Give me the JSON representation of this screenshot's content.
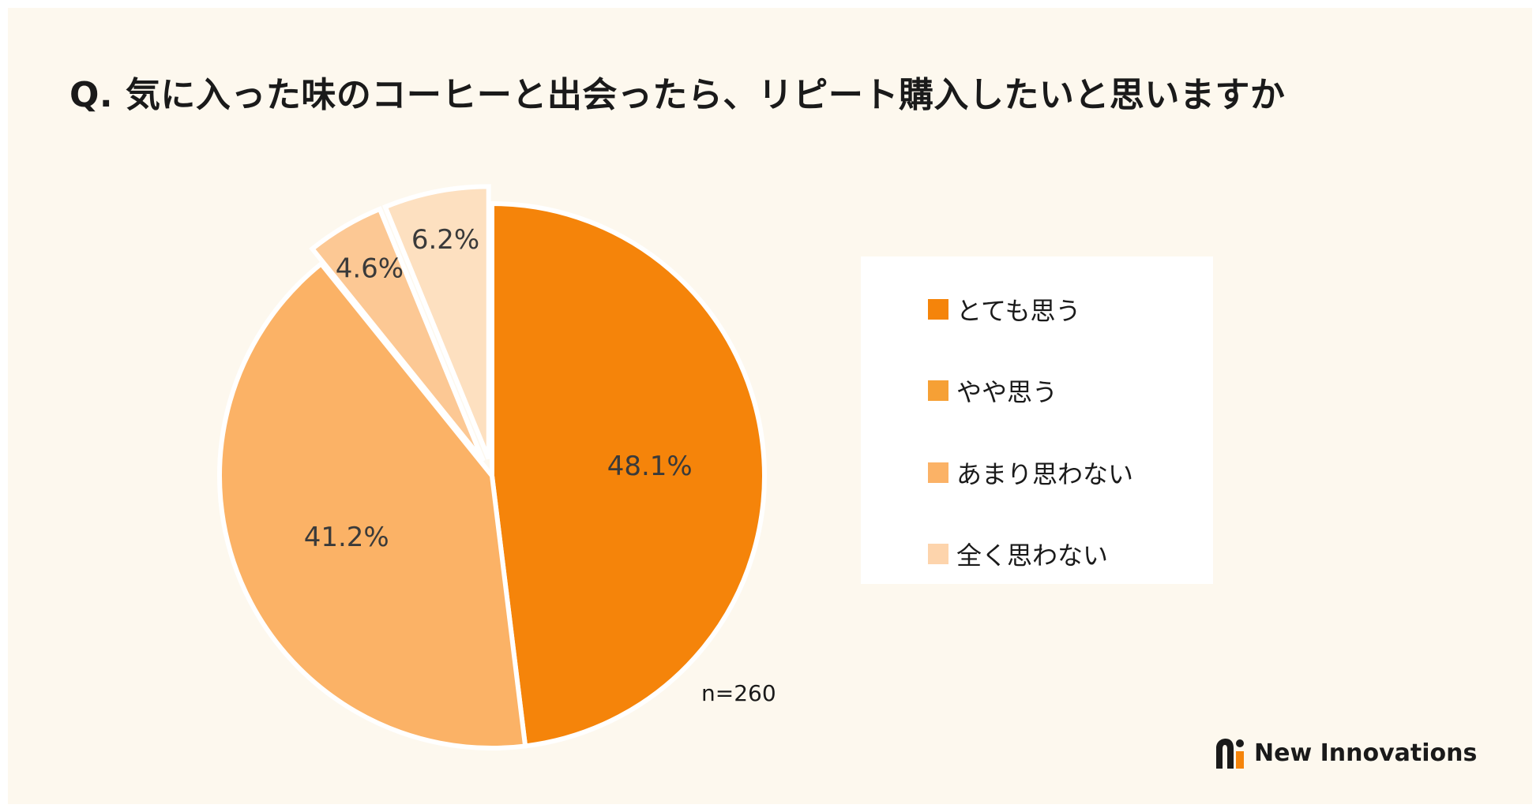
{
  "chart_data": {
    "type": "pie",
    "title": "Q. 気に入った味のコーヒーと出会ったら、リピート購入したいと思いますか",
    "categories": [
      "とても思う",
      "やや思う",
      "あまり思わない",
      "全く思わない"
    ],
    "values": [
      48.1,
      41.2,
      4.6,
      6.2
    ],
    "value_labels": [
      "48.1%",
      "41.2%",
      "4.6%",
      "6.2%"
    ],
    "colors": [
      "#f5840a",
      "#fbb266",
      "#fcc894",
      "#fde0c0"
    ],
    "legend_colors": [
      "#f5840a",
      "#f6a035",
      "#fbb266",
      "#fdd4ac"
    ],
    "exploded": [
      false,
      false,
      true,
      true
    ],
    "legend_position": "right",
    "sample_size": "n=260"
  },
  "branding": {
    "name": "New Innovations"
  }
}
